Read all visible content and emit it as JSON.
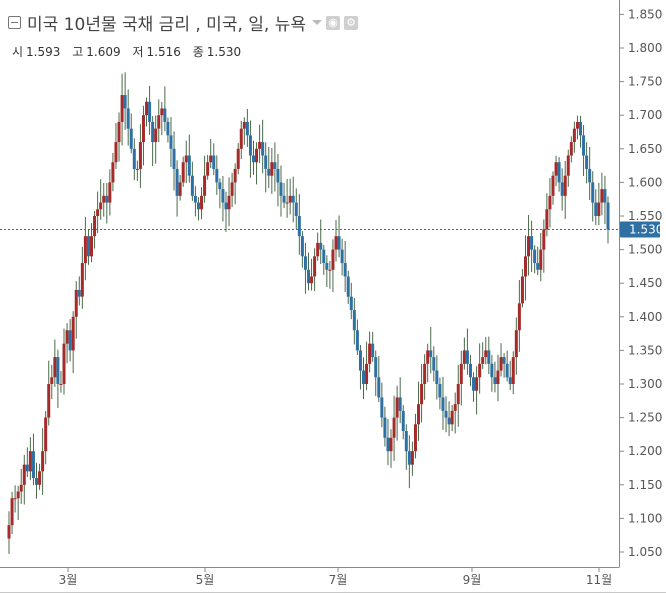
{
  "header": {
    "title": "미국 10년물 국채 금리 , 미국, 일, 뉴욕"
  },
  "ohlc": {
    "open_label": "시",
    "open": "1.593",
    "high_label": "고",
    "high": "1.609",
    "low_label": "저",
    "low": "1.516",
    "close_label": "종",
    "close": "1.530"
  },
  "colors": {
    "up": "#a52a2a",
    "down": "#2e6fa4",
    "wick": "#4a6b4a",
    "last_price_bg": "#2e6fa4"
  },
  "chart_data": {
    "type": "candlestick",
    "title": "미국 10년물 국채 금리",
    "y_ticks": [
      "1.850",
      "1.800",
      "1.750",
      "1.700",
      "1.650",
      "1.600",
      "1.550",
      "1.500",
      "1.450",
      "1.400",
      "1.350",
      "1.300",
      "1.250",
      "1.200",
      "1.150",
      "1.100",
      "1.050"
    ],
    "ylim": [
      1.025,
      1.862
    ],
    "x_ticks": [
      "3월",
      "5월",
      "7월",
      "9월",
      "11월"
    ],
    "last_price": "1.530",
    "grid": false,
    "closes": [
      1.09,
      1.13,
      1.13,
      1.14,
      1.15,
      1.18,
      1.17,
      1.2,
      1.16,
      1.15,
      1.17,
      1.2,
      1.25,
      1.3,
      1.31,
      1.34,
      1.3,
      1.3,
      1.36,
      1.38,
      1.35,
      1.4,
      1.44,
      1.43,
      1.48,
      1.52,
      1.49,
      1.52,
      1.55,
      1.56,
      1.57,
      1.58,
      1.57,
      1.6,
      1.63,
      1.66,
      1.69,
      1.73,
      1.71,
      1.68,
      1.65,
      1.62,
      1.62,
      1.66,
      1.7,
      1.72,
      1.69,
      1.66,
      1.68,
      1.7,
      1.71,
      1.69,
      1.67,
      1.65,
      1.62,
      1.58,
      1.6,
      1.63,
      1.64,
      1.61,
      1.58,
      1.57,
      1.56,
      1.58,
      1.61,
      1.63,
      1.64,
      1.62,
      1.6,
      1.59,
      1.57,
      1.56,
      1.58,
      1.6,
      1.62,
      1.65,
      1.68,
      1.69,
      1.67,
      1.64,
      1.63,
      1.65,
      1.66,
      1.64,
      1.62,
      1.61,
      1.63,
      1.62,
      1.6,
      1.58,
      1.57,
      1.57,
      1.58,
      1.57,
      1.55,
      1.52,
      1.49,
      1.47,
      1.45,
      1.46,
      1.49,
      1.51,
      1.5,
      1.48,
      1.47,
      1.47,
      1.5,
      1.52,
      1.5,
      1.48,
      1.46,
      1.43,
      1.41,
      1.38,
      1.35,
      1.32,
      1.3,
      1.33,
      1.36,
      1.34,
      1.31,
      1.28,
      1.25,
      1.22,
      1.2,
      1.22,
      1.25,
      1.28,
      1.26,
      1.23,
      1.2,
      1.18,
      1.2,
      1.24,
      1.27,
      1.3,
      1.33,
      1.35,
      1.34,
      1.32,
      1.3,
      1.28,
      1.26,
      1.25,
      1.24,
      1.26,
      1.27,
      1.3,
      1.33,
      1.35,
      1.33,
      1.31,
      1.29,
      1.31,
      1.33,
      1.34,
      1.35,
      1.33,
      1.31,
      1.3,
      1.32,
      1.34,
      1.33,
      1.31,
      1.3,
      1.34,
      1.38,
      1.42,
      1.46,
      1.49,
      1.52,
      1.5,
      1.48,
      1.47,
      1.5,
      1.53,
      1.56,
      1.58,
      1.61,
      1.63,
      1.6,
      1.58,
      1.61,
      1.64,
      1.66,
      1.68,
      1.69,
      1.67,
      1.64,
      1.62,
      1.6,
      1.57,
      1.55,
      1.57,
      1.59,
      1.57,
      1.53
    ]
  }
}
